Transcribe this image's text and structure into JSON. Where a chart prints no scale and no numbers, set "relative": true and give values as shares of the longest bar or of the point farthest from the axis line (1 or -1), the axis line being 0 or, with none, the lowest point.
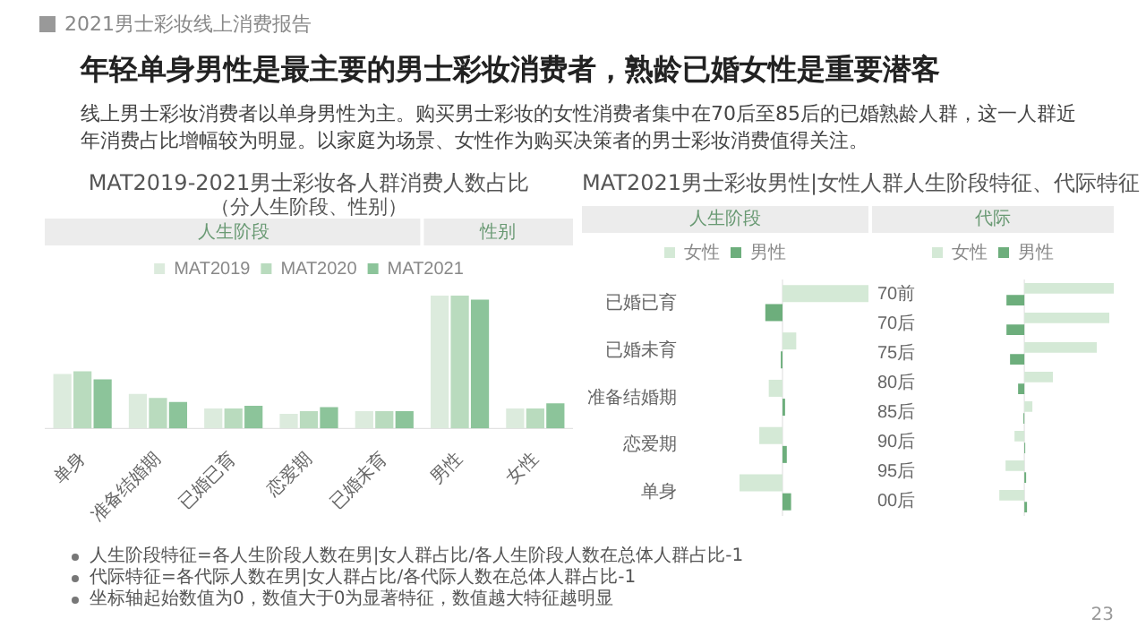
{
  "chart_data": [
    {
      "type": "other",
      "title": "年轻单身男性是最主要的男士彩妆消费者，熟龄已婚女性是重要潜客",
      "subtitle": "线上男士彩妆消费者以单身男性为主。购买男士彩妆的女性消费者集中在70后至85后的已婚熟龄人群，这一人群近年消费占比增幅较为明显。以家庭为场景、女性作为购买决策者的男士彩妆消费值得关注。",
      "annotations": [
        "2021男士彩妆线上消费报告",
        "23"
      ]
    },
    {
      "type": "bar",
      "title": "MAT2019-2021男士彩妆各人群消费人数占比",
      "subtitle": "（分人生阶段、性别）",
      "relative": true,
      "legend": "top",
      "categories": [
        "单身",
        "准备结婚期",
        "已婚已育",
        "恋爱期",
        "已婚未育",
        "男性",
        "女性"
      ],
      "annotations": [
        "人生阶段",
        "性别"
      ],
      "series": [
        {
          "name": "MAT2019",
          "color": "#dcebdd",
          "values": [
            0.41,
            0.26,
            0.15,
            0.11,
            0.13,
            1,
            0.15
          ]
        },
        {
          "name": "MAT2020",
          "color": "#b9dbbe",
          "values": [
            0.43,
            0.23,
            0.15,
            0.13,
            0.13,
            1,
            0.15
          ]
        },
        {
          "name": "MAT2021",
          "color": "#8cc49a",
          "values": [
            0.37,
            0.2,
            0.17,
            0.16,
            0.13,
            0.97,
            0.19
          ]
        }
      ]
    },
    {
      "type": "bar",
      "title": "MAT2021男士彩妆男性|女性人群人生阶段特征、代际特征",
      "subtitle": "人生阶段",
      "relative": true,
      "orientation": "horizontal",
      "legend": "top",
      "categories": [
        "已婚已育",
        "已婚未育",
        "准备结婚期",
        "恋爱期",
        "单身"
      ],
      "series": [
        {
          "name": "女性",
          "color": "#d4e9d6",
          "values": [
            1,
            0.16,
            -0.16,
            -0.27,
            -0.5
          ]
        },
        {
          "name": "男性",
          "color": "#6dae7c",
          "values": [
            -0.2,
            -0.02,
            0.03,
            0.05,
            0.1
          ]
        }
      ]
    },
    {
      "type": "bar",
      "subtitle": "代际",
      "relative": true,
      "orientation": "horizontal",
      "legend": "top",
      "categories": [
        "70前",
        "70后",
        "75后",
        "80后",
        "85后",
        "90后",
        "95后",
        "00后"
      ],
      "annotations": [
        "人生阶段特征=各人生阶段人数在男|女人群占比/各人生阶段人数在总体人群占比-1",
        "代际特征=各代际人数在男|女人群占比/各代际人数在总体人群占比-1",
        "坐标轴起始数值为0，数值大于0为显著特征，数值越大特征越明显"
      ],
      "series": [
        {
          "name": "女性",
          "color": "#d4e9d6",
          "values": [
            1,
            0.95,
            0.81,
            0.32,
            0.09,
            -0.11,
            -0.21,
            -0.28
          ]
        },
        {
          "name": "男性",
          "color": "#6dae7c",
          "values": [
            -0.2,
            -0.2,
            -0.16,
            -0.07,
            -0.01,
            0.01,
            0.02,
            0.03
          ]
        }
      ]
    }
  ]
}
